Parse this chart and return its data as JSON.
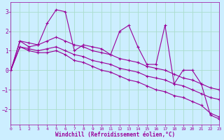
{
  "bg_color": "#cceeff",
  "line_color": "#990099",
  "grid_color": "#aaddcc",
  "xlabel": "Windchill (Refroidissement éolien,°C)",
  "xlabel_color": "#990099",
  "ylim": [
    -2.8,
    3.5
  ],
  "xlim": [
    0,
    23
  ],
  "yticks": [
    -2,
    -1,
    0,
    1,
    2,
    3
  ],
  "xticks": [
    0,
    1,
    2,
    3,
    4,
    5,
    6,
    7,
    8,
    9,
    10,
    11,
    12,
    13,
    14,
    15,
    16,
    17,
    18,
    19,
    20,
    21,
    22,
    23
  ],
  "series": [
    {
      "x": [
        0,
        1,
        2,
        3,
        4,
        5,
        6,
        7,
        8,
        9,
        10,
        11,
        12,
        13,
        14,
        15,
        16,
        17,
        18,
        19,
        20,
        21,
        22,
        23
      ],
      "y": [
        0.0,
        1.5,
        1.2,
        1.3,
        2.4,
        3.1,
        3.0,
        1.0,
        1.3,
        1.2,
        1.1,
        0.8,
        2.0,
        2.3,
        1.2,
        0.3,
        0.3,
        2.3,
        -0.7,
        0.0,
        0.0,
        -0.7,
        -2.3,
        -2.5
      ]
    },
    {
      "x": [
        0,
        1,
        2,
        3,
        4,
        5,
        6,
        7,
        8,
        9,
        10,
        11,
        12,
        13,
        14,
        15,
        16,
        17,
        18,
        19,
        20,
        21,
        22,
        23
      ],
      "y": [
        0.0,
        1.5,
        1.4,
        1.3,
        1.5,
        1.7,
        1.5,
        1.3,
        1.2,
        1.0,
        0.9,
        0.8,
        0.6,
        0.5,
        0.4,
        0.2,
        0.1,
        0.0,
        -0.2,
        -0.4,
        -0.5,
        -0.7,
        -0.9,
        -1.0
      ]
    },
    {
      "x": [
        0,
        1,
        2,
        3,
        4,
        5,
        6,
        7,
        8,
        9,
        10,
        11,
        12,
        13,
        14,
        15,
        16,
        17,
        18,
        19,
        20,
        21,
        22,
        23
      ],
      "y": [
        0.0,
        1.2,
        1.1,
        1.0,
        1.1,
        1.2,
        1.0,
        0.8,
        0.7,
        0.5,
        0.4,
        0.3,
        0.1,
        0.0,
        -0.1,
        -0.3,
        -0.4,
        -0.5,
        -0.7,
        -0.8,
        -1.0,
        -1.2,
        -1.4,
        -1.5
      ]
    },
    {
      "x": [
        0,
        1,
        2,
        3,
        4,
        5,
        6,
        7,
        8,
        9,
        10,
        11,
        12,
        13,
        14,
        15,
        16,
        17,
        18,
        19,
        20,
        21,
        22,
        23
      ],
      "y": [
        0.0,
        1.2,
        1.0,
        0.9,
        0.9,
        1.0,
        0.8,
        0.5,
        0.4,
        0.2,
        0.0,
        -0.1,
        -0.3,
        -0.5,
        -0.6,
        -0.8,
        -1.0,
        -1.1,
        -1.3,
        -1.4,
        -1.6,
        -1.8,
        -2.2,
        -2.4
      ]
    }
  ]
}
